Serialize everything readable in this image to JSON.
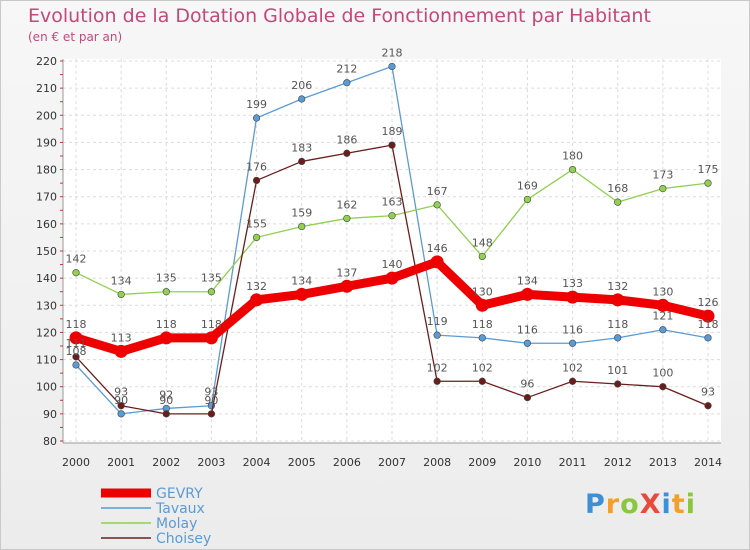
{
  "title": "Evolution de la Dotation Globale de Fonctionnement par Habitant",
  "subtitle": "(en € et par an)",
  "logo": "ProXiti",
  "chart_data": {
    "type": "line",
    "title": "Evolution de la Dotation Globale de Fonctionnement par Habitant",
    "subtitle": "(en € et par an)",
    "x": [
      "2000",
      "2001",
      "2002",
      "2003",
      "2004",
      "2005",
      "2006",
      "2007",
      "2008",
      "2009",
      "2010",
      "2011",
      "2012",
      "2013",
      "2014"
    ],
    "ylim": [
      80,
      220
    ],
    "yticks": [
      80,
      90,
      100,
      110,
      120,
      130,
      140,
      150,
      160,
      170,
      180,
      190,
      200,
      210,
      220
    ],
    "grid": true,
    "legend_position": "bottom-left",
    "series": [
      {
        "name": "GEVRY",
        "color": "#ee0000",
        "values": [
          118,
          113,
          118,
          118,
          132,
          134,
          137,
          140,
          146,
          130,
          134,
          133,
          132,
          130,
          126
        ]
      },
      {
        "name": "Tavaux",
        "color": "#5b9bd5",
        "values": [
          108,
          90,
          92,
          93,
          199,
          206,
          212,
          218,
          119,
          118,
          116,
          116,
          118,
          121,
          118
        ]
      },
      {
        "name": "Molay",
        "color": "#92d050",
        "values": [
          142,
          134,
          135,
          135,
          155,
          159,
          162,
          163,
          167,
          148,
          169,
          180,
          168,
          173,
          175
        ]
      },
      {
        "name": "Choisey",
        "color": "#6b1d1d",
        "values": [
          111,
          93,
          90,
          90,
          176,
          183,
          186,
          189,
          102,
          102,
          96,
          102,
          101,
          100,
          93
        ]
      }
    ]
  }
}
